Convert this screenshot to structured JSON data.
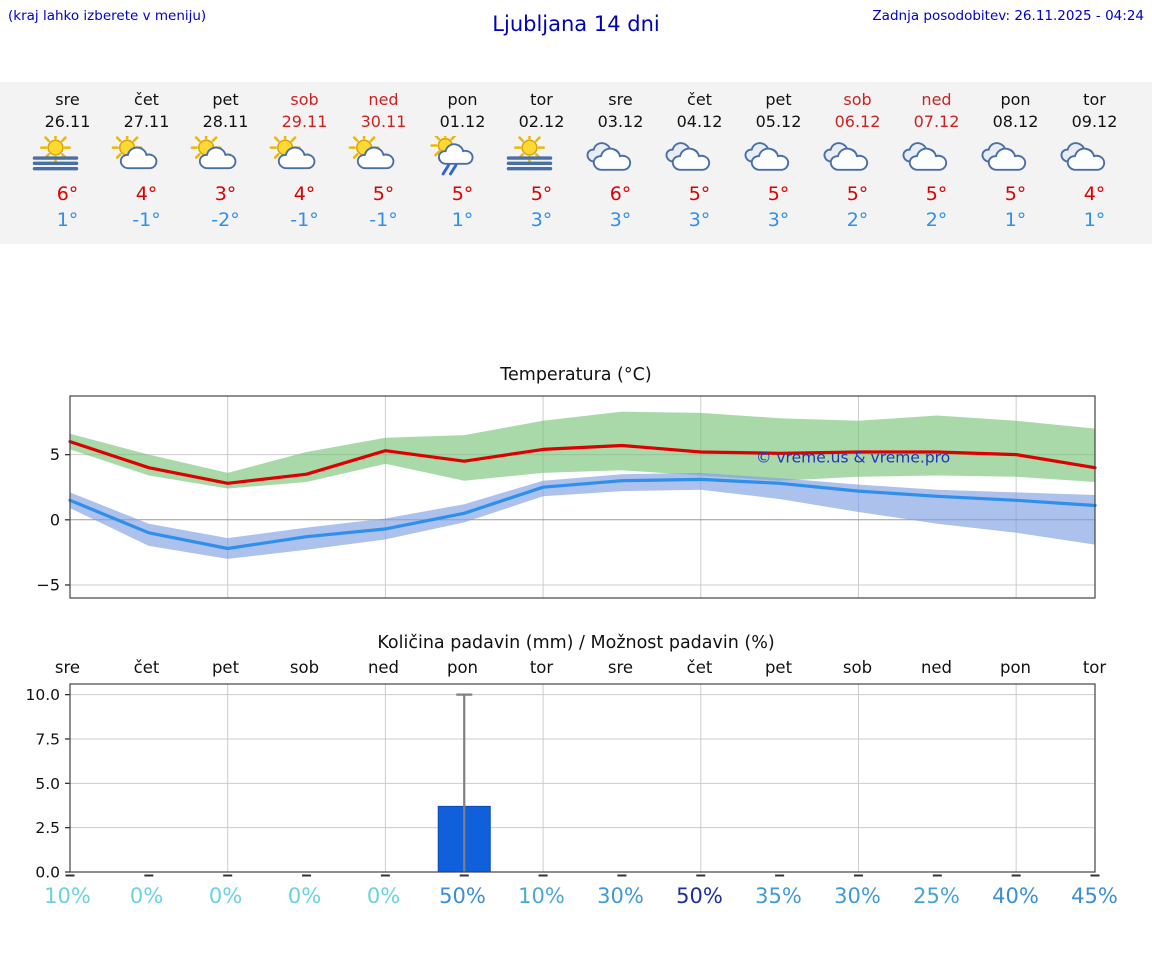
{
  "header": {
    "menu_note": "(kraj lahko izberete v meniju)",
    "title": "Ljubljana 14 dni",
    "last_update": "Zadnja posodobitev: 26.11.2025 - 04:24"
  },
  "colors": {
    "accent_blue": "#0000cc",
    "temp_high_red": "#dd0000",
    "temp_low_blue": "#2f8fea",
    "weekend_red": "#cc2222",
    "strip_bg": "#f3f3f3",
    "bar_blue": "#1060dc",
    "watermark_blue": "#2233bb"
  },
  "forecast": {
    "days": [
      {
        "name": "sre",
        "date": "26.11",
        "weekend": false,
        "icon": "sun-fog-icon",
        "high": "6°",
        "low": "1°"
      },
      {
        "name": "čet",
        "date": "27.11",
        "weekend": false,
        "icon": "sun-cloud-icon",
        "high": "4°",
        "low": "-1°"
      },
      {
        "name": "pet",
        "date": "28.11",
        "weekend": false,
        "icon": "sun-cloud-icon",
        "high": "3°",
        "low": "-2°"
      },
      {
        "name": "sob",
        "date": "29.11",
        "weekend": true,
        "icon": "sun-cloud-icon",
        "high": "4°",
        "low": "-1°"
      },
      {
        "name": "ned",
        "date": "30.11",
        "weekend": true,
        "icon": "sun-cloud-icon",
        "high": "5°",
        "low": "-1°"
      },
      {
        "name": "pon",
        "date": "01.12",
        "weekend": false,
        "icon": "sun-rain-icon",
        "high": "5°",
        "low": "1°"
      },
      {
        "name": "tor",
        "date": "02.12",
        "weekend": false,
        "icon": "sun-fog-icon",
        "high": "5°",
        "low": "3°"
      },
      {
        "name": "sre",
        "date": "03.12",
        "weekend": false,
        "icon": "cloud-icon",
        "high": "6°",
        "low": "3°"
      },
      {
        "name": "čet",
        "date": "04.12",
        "weekend": false,
        "icon": "cloud-icon",
        "high": "5°",
        "low": "3°"
      },
      {
        "name": "pet",
        "date": "05.12",
        "weekend": false,
        "icon": "cloud-icon",
        "high": "5°",
        "low": "3°"
      },
      {
        "name": "sob",
        "date": "06.12",
        "weekend": true,
        "icon": "cloud-icon",
        "high": "5°",
        "low": "2°"
      },
      {
        "name": "ned",
        "date": "07.12",
        "weekend": true,
        "icon": "cloud-icon",
        "high": "5°",
        "low": "2°"
      },
      {
        "name": "pon",
        "date": "08.12",
        "weekend": false,
        "icon": "cloud-icon",
        "high": "5°",
        "low": "1°"
      },
      {
        "name": "tor",
        "date": "09.12",
        "weekend": false,
        "icon": "cloud-icon",
        "high": "4°",
        "low": "1°"
      }
    ]
  },
  "chart_data": [
    {
      "type": "area",
      "title": "Temperatura (°C)",
      "categories": [
        "26.11",
        "27.11",
        "28.11",
        "29.11",
        "30.11",
        "01.12",
        "02.12",
        "03.12",
        "04.12",
        "05.12",
        "06.12",
        "07.12",
        "08.12",
        "09.12"
      ],
      "ylim": [
        -6,
        9.5
      ],
      "yticks": [
        {
          "v": 5,
          "label": "5"
        },
        {
          "v": 0,
          "label": "0"
        },
        {
          "v": -5,
          "label": "−5"
        }
      ],
      "grid_x_days": [
        2,
        4,
        6,
        8,
        10,
        12
      ],
      "series": [
        {
          "name": "max-temp",
          "color": "#dd0000",
          "values": [
            6.0,
            4.0,
            2.8,
            3.5,
            5.3,
            4.5,
            5.4,
            5.7,
            5.2,
            5.1,
            5.2,
            5.2,
            5.0,
            4.0
          ]
        },
        {
          "name": "min-temp",
          "color": "#2f8fea",
          "values": [
            1.5,
            -1.0,
            -2.2,
            -1.3,
            -0.7,
            0.5,
            2.5,
            3.0,
            3.1,
            2.8,
            2.2,
            1.8,
            1.5,
            1.1
          ]
        }
      ],
      "bands": [
        {
          "name": "max-temp-range",
          "color": "#6fbf70",
          "opacity": 0.6,
          "upper": [
            6.6,
            5.0,
            3.6,
            5.2,
            6.3,
            6.5,
            7.6,
            8.3,
            8.2,
            7.8,
            7.6,
            8.0,
            7.6,
            7.0
          ],
          "lower": [
            5.4,
            3.4,
            2.4,
            2.9,
            4.3,
            3.0,
            3.6,
            3.8,
            3.4,
            3.0,
            3.3,
            3.4,
            3.3,
            2.9
          ]
        },
        {
          "name": "min-temp-range",
          "color": "#7f9fe0",
          "opacity": 0.65,
          "upper": [
            2.1,
            -0.3,
            -1.4,
            -0.6,
            0.1,
            1.2,
            3.0,
            3.5,
            3.6,
            3.2,
            2.7,
            2.3,
            2.1,
            1.9
          ],
          "lower": [
            0.9,
            -2.0,
            -3.0,
            -2.3,
            -1.5,
            -0.2,
            1.8,
            2.2,
            2.3,
            1.6,
            0.6,
            -0.3,
            -1.0,
            -1.9
          ]
        }
      ],
      "watermark": "© vreme.us & vreme.pro",
      "legend": "none",
      "grid": true
    },
    {
      "type": "bar",
      "title": "Količina padavin (mm) / Možnost padavin (%)",
      "categories": [
        "sre",
        "čet",
        "pet",
        "sob",
        "ned",
        "pon",
        "tor",
        "sre",
        "čet",
        "pet",
        "sob",
        "ned",
        "pon",
        "tor"
      ],
      "values": [
        0,
        0,
        0,
        0,
        0,
        3.7,
        0,
        0,
        0,
        0,
        0,
        0,
        0,
        0
      ],
      "whisker": {
        "day_index": 5,
        "min": 0,
        "max": 10
      },
      "ylim": [
        0,
        10.6
      ],
      "yticks": [
        {
          "v": 10,
          "label": "10.0"
        },
        {
          "v": 7.5,
          "label": "7.5"
        },
        {
          "v": 5,
          "label": "5.0"
        },
        {
          "v": 2.5,
          "label": "2.5"
        },
        {
          "v": 0,
          "label": "0.0"
        }
      ],
      "grid_x_days": [
        2,
        4,
        6,
        8,
        10,
        12
      ],
      "bar_color": "#1060dc",
      "probabilities": [
        {
          "label": "10%",
          "color": "#6bd1e2"
        },
        {
          "label": "0%",
          "color": "#6bd1e2"
        },
        {
          "label": "0%",
          "color": "#6bd1e2"
        },
        {
          "label": "0%",
          "color": "#6bd1e2"
        },
        {
          "label": "0%",
          "color": "#6bd1e2"
        },
        {
          "label": "50%",
          "color": "#3c8fd2"
        },
        {
          "label": "10%",
          "color": "#49a8dc"
        },
        {
          "label": "30%",
          "color": "#3f9ad6"
        },
        {
          "label": "50%",
          "color": "#1c2f9e"
        },
        {
          "label": "35%",
          "color": "#3f9ad6"
        },
        {
          "label": "30%",
          "color": "#3f9ad6"
        },
        {
          "label": "25%",
          "color": "#45a2d8"
        },
        {
          "label": "40%",
          "color": "#3c8fd2"
        },
        {
          "label": "45%",
          "color": "#3c8fd2"
        }
      ]
    }
  ]
}
